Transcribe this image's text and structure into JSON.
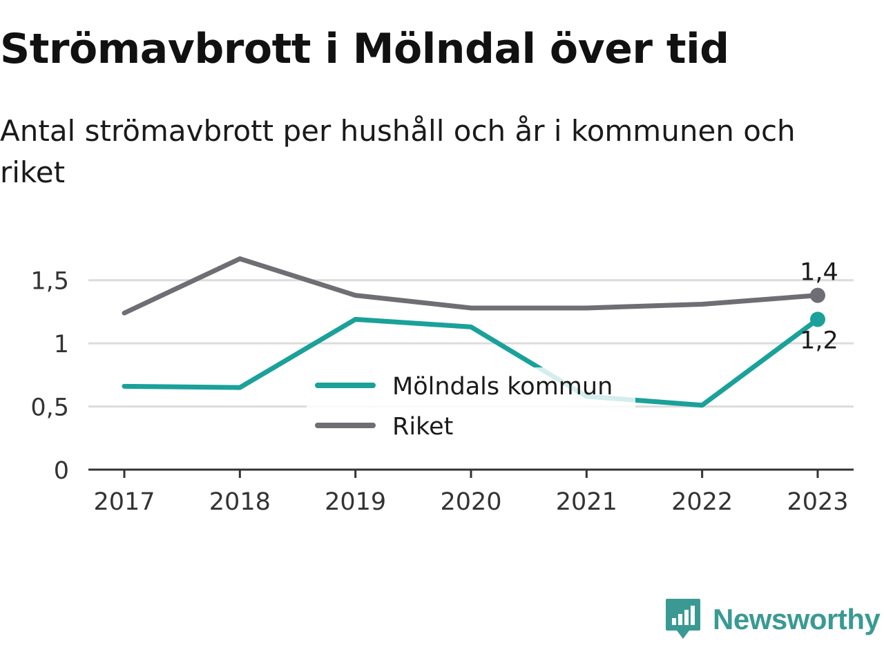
{
  "header": {
    "title": "Strömavbrott i Mölndal över tid",
    "subtitle": "Antal strömavbrott per hushåll och år i kommunen och riket"
  },
  "brand": {
    "name": "Newsworthy",
    "color": "#3a9a93",
    "icon": "newsworthy-bar-chart-icon"
  },
  "chart_data": {
    "type": "line",
    "x": [
      "2017",
      "2018",
      "2019",
      "2020",
      "2021",
      "2022",
      "2023"
    ],
    "series": [
      {
        "name": "Mölndals kommun",
        "color": "#1aa19a",
        "values": [
          0.66,
          0.65,
          1.19,
          1.13,
          0.58,
          0.51,
          1.19
        ],
        "end_label": "1,2"
      },
      {
        "name": "Riket",
        "color": "#6f6e75",
        "values": [
          1.24,
          1.67,
          1.38,
          1.28,
          1.28,
          1.31,
          1.38
        ],
        "end_label": "1,4"
      }
    ],
    "y_ticks": [
      {
        "value": 0,
        "label": "0"
      },
      {
        "value": 0.5,
        "label": "0,5"
      },
      {
        "value": 1,
        "label": "1"
      },
      {
        "value": 1.5,
        "label": "1,5"
      }
    ],
    "ylim": [
      0,
      1.75
    ],
    "grid": true,
    "legend_placement": "center"
  }
}
